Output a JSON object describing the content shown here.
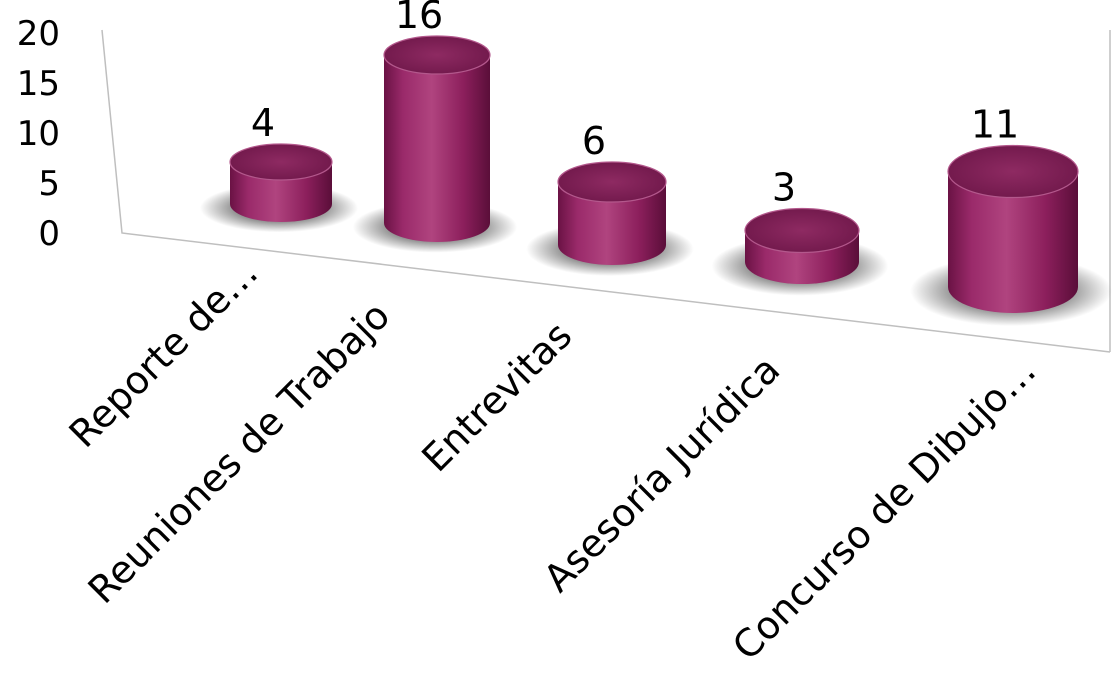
{
  "chart_data": {
    "type": "bar",
    "style": "3d-cylinder",
    "categories": [
      "Reporte de…",
      "Reuniones de Trabajo",
      "Entrevitas",
      "Asesoría Jurídica",
      "Concurso de Dibujo…"
    ],
    "values": [
      4,
      16,
      6,
      3,
      11
    ],
    "yticks": [
      0,
      5,
      10,
      15,
      20
    ],
    "ylim": [
      0,
      20
    ],
    "bar_color": "#8e1f5f",
    "bar_top_color": "#7a1a52",
    "grid": false,
    "legend": "none"
  }
}
